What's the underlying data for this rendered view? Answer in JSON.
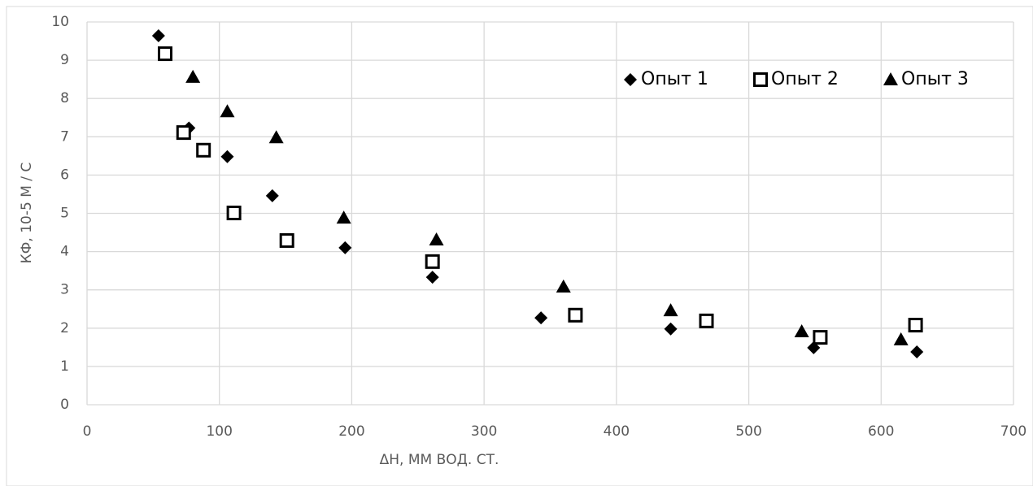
{
  "chart_data": {
    "type": "scatter",
    "x_label": "ΔН, ММ ВОД. СТ.",
    "y_label": "КФ, 10-5 М / С",
    "xlim": [
      0,
      700
    ],
    "xticks": [
      0,
      100,
      200,
      300,
      400,
      500,
      600,
      700
    ],
    "ylim": [
      0,
      10
    ],
    "yticks": [
      0,
      1,
      2,
      3,
      4,
      5,
      6,
      7,
      8,
      9,
      10
    ],
    "grid": true,
    "legend": "upper right",
    "series": [
      {
        "name": "Опыт 1",
        "color": "#000000",
        "marker": "diamond",
        "x": [
          54,
          77,
          106,
          140,
          195,
          261,
          343,
          441,
          549,
          627
        ],
        "values": [
          9.64,
          7.23,
          6.48,
          5.46,
          4.1,
          3.33,
          2.27,
          1.98,
          1.49,
          1.38
        ]
      },
      {
        "name": "Опыт 2",
        "color": "#000000",
        "marker": "square",
        "x": [
          59,
          73,
          88,
          111,
          151,
          261,
          369,
          468,
          554,
          626
        ],
        "values": [
          9.17,
          7.11,
          6.65,
          5.01,
          4.29,
          3.74,
          2.34,
          2.19,
          1.76,
          2.08
        ]
      },
      {
        "name": "Опыт 3",
        "color": "#000000",
        "marker": "triangle",
        "x": [
          80,
          106,
          143,
          194,
          264,
          360,
          441,
          540,
          615
        ],
        "values": [
          8.56,
          7.66,
          6.98,
          4.88,
          4.31,
          3.08,
          2.46,
          1.91,
          1.7
        ]
      }
    ]
  }
}
